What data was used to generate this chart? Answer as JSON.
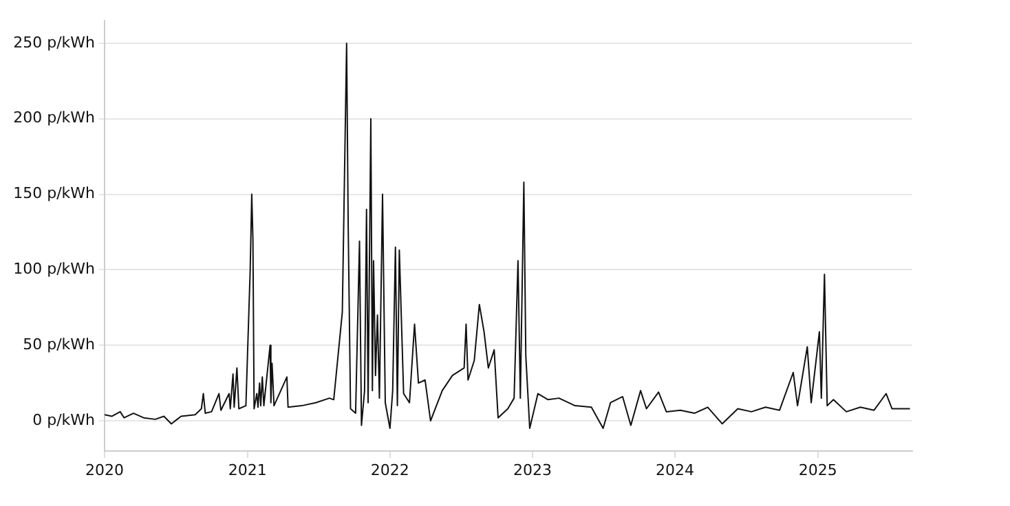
{
  "chart_data": {
    "type": "line",
    "x": [
      "2020-01-01",
      "2020-01-20",
      "2020-02-10",
      "2020-02-20",
      "2020-03-15",
      "2020-04-10",
      "2020-05-10",
      "2020-06-01",
      "2020-06-20",
      "2020-07-15",
      "2020-08-20",
      "2020-09-05",
      "2020-09-10",
      "2020-09-15",
      "2020-10-01",
      "2020-10-20",
      "2020-10-25",
      "2020-11-15",
      "2020-11-18",
      "2020-11-25",
      "2020-11-28",
      "2020-12-05",
      "2020-12-10",
      "2020-12-28",
      "2021-01-08",
      "2021-01-12",
      "2021-01-15",
      "2021-01-18",
      "2021-01-25",
      "2021-01-28",
      "2021-02-01",
      "2021-02-04",
      "2021-02-08",
      "2021-02-12",
      "2021-02-28",
      "2021-03-02",
      "2021-03-05",
      "2021-03-10",
      "2021-04-12",
      "2021-04-15",
      "2021-05-20",
      "2021-06-25",
      "2021-07-30",
      "2021-08-10",
      "2021-09-01",
      "2021-09-12",
      "2021-09-16",
      "2021-09-22",
      "2021-10-05",
      "2021-10-15",
      "2021-10-20",
      "2021-10-28",
      "2021-11-02",
      "2021-11-06",
      "2021-11-13",
      "2021-11-17",
      "2021-11-20",
      "2021-11-25",
      "2021-11-30",
      "2021-12-05",
      "2021-12-13",
      "2021-12-20",
      "2022-01-01",
      "2022-01-08",
      "2022-01-15",
      "2022-01-20",
      "2022-01-25",
      "2022-02-05",
      "2022-02-20",
      "2022-03-05",
      "2022-03-15",
      "2022-04-01",
      "2022-04-15",
      "2022-05-15",
      "2022-06-10",
      "2022-07-10",
      "2022-07-15",
      "2022-07-20",
      "2022-08-05",
      "2022-08-18",
      "2022-08-30",
      "2022-09-10",
      "2022-09-25",
      "2022-10-05",
      "2022-10-30",
      "2022-11-15",
      "2022-11-25",
      "2022-12-01",
      "2022-12-10",
      "2022-12-15",
      "2022-12-25",
      "2023-01-15",
      "2023-02-10",
      "2023-03-10",
      "2023-04-20",
      "2023-06-01",
      "2023-07-01",
      "2023-07-20",
      "2023-08-20",
      "2023-09-10",
      "2023-10-05",
      "2023-10-20",
      "2023-11-20",
      "2023-12-10",
      "2024-01-15",
      "2024-02-20",
      "2024-03-25",
      "2024-05-01",
      "2024-06-10",
      "2024-07-15",
      "2024-08-20",
      "2024-09-25",
      "2024-10-30",
      "2024-11-10",
      "2024-12-05",
      "2024-12-15",
      "2025-01-05",
      "2025-01-10",
      "2025-01-18",
      "2025-01-25",
      "2025-02-10",
      "2025-03-15",
      "2025-04-20",
      "2025-05-25",
      "2025-06-25",
      "2025-07-10",
      "2025-08-25"
    ],
    "series": [
      {
        "color": "#111111",
        "values": [
          4,
          3,
          6,
          2,
          5,
          2,
          1,
          3,
          -2,
          3,
          4,
          8,
          18,
          5,
          6,
          18,
          7,
          18,
          8,
          31,
          9,
          35,
          8,
          10,
          100,
          150,
          120,
          8,
          18,
          9,
          25,
          10,
          29,
          10,
          50,
          12,
          38,
          10,
          29,
          9,
          10,
          12,
          15,
          14,
          72,
          250,
          130,
          8,
          5,
          119,
          -3,
          20,
          140,
          12,
          200,
          20,
          106,
          30,
          70,
          15,
          150,
          12,
          -5,
          20,
          115,
          10,
          113,
          18,
          12,
          64,
          25,
          27,
          0,
          20,
          30,
          35,
          64,
          27,
          40,
          77,
          59,
          35,
          47,
          2,
          8,
          15,
          106,
          15,
          158,
          43,
          -5,
          18,
          14,
          15,
          10,
          9,
          -5,
          12,
          16,
          -3,
          20,
          8,
          19,
          6,
          7,
          5,
          9,
          -2,
          8,
          6,
          9,
          7,
          32,
          10,
          49,
          12,
          59,
          15,
          97,
          10,
          14,
          6,
          9,
          7,
          18,
          8,
          8
        ]
      }
    ],
    "ylim": [
      -20,
      265
    ],
    "yticks": [
      {
        "value": 0,
        "label": "0 p/kWh"
      },
      {
        "value": 50,
        "label": "50 p/kWh"
      },
      {
        "value": 100,
        "label": "100 p/kWh"
      },
      {
        "value": 150,
        "label": "150 p/kWh"
      },
      {
        "value": 200,
        "label": "200 p/kWh"
      },
      {
        "value": 250,
        "label": "250 p/kWh"
      }
    ],
    "xlim": [
      "2020",
      "2025-08-31"
    ],
    "xticks": [
      "2020",
      "2021",
      "2022",
      "2023",
      "2024",
      "2025"
    ],
    "grid": "y",
    "legend": false,
    "marker": "none",
    "line_style": "solid"
  }
}
